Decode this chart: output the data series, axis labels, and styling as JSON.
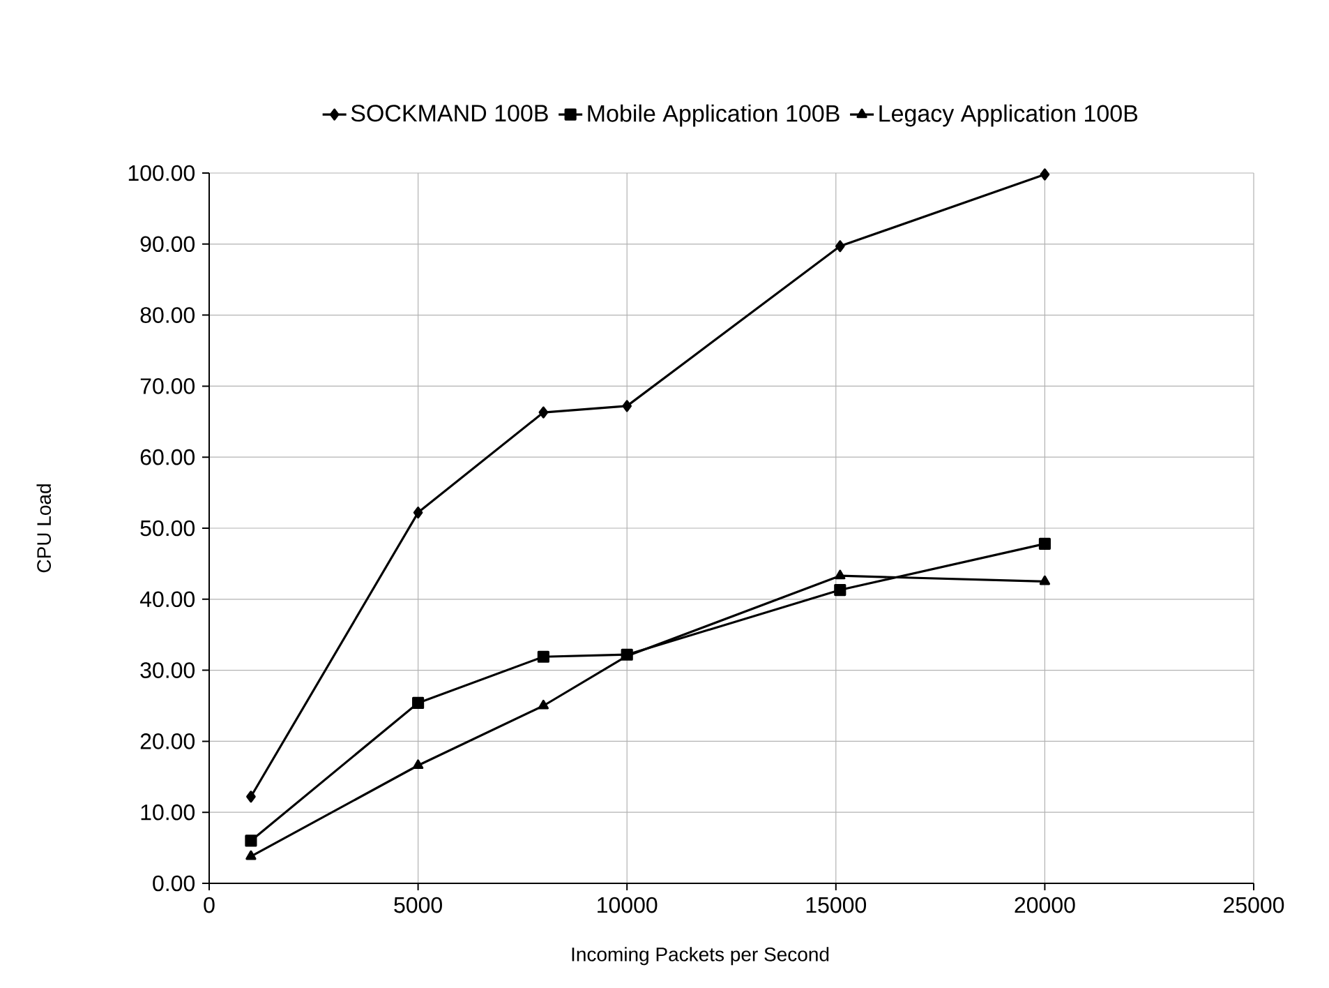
{
  "chart_data": {
    "type": "line",
    "xlabel": "Incoming Packets per Second",
    "ylabel": "CPU Load",
    "x": [
      1000,
      5000,
      8000,
      10000,
      15100,
      20000
    ],
    "series": [
      {
        "name": "SOCKMAND 100B",
        "color": "#000000",
        "marker": "diamond",
        "values": [
          12.2,
          52.2,
          66.3,
          67.2,
          89.7,
          99.8
        ]
      },
      {
        "name": "Mobile Application 100B",
        "color": "#000000",
        "marker": "square",
        "values": [
          6.0,
          25.4,
          31.9,
          32.2,
          41.3,
          47.8
        ]
      },
      {
        "name": "Legacy Application 100B",
        "color": "#000000",
        "marker": "triangle",
        "values": [
          3.8,
          16.6,
          25.0,
          32.0,
          43.3,
          42.5
        ]
      }
    ],
    "xlim": [
      0,
      25000
    ],
    "xticks": [
      0,
      5000,
      10000,
      15000,
      20000,
      25000
    ],
    "ylim": [
      0,
      100
    ],
    "yticks": [
      {
        "value": 0,
        "label": "0.00"
      },
      {
        "value": 10,
        "label": "10.00"
      },
      {
        "value": 20,
        "label": "20.00"
      },
      {
        "value": 30,
        "label": "30.00"
      },
      {
        "value": 40,
        "label": "40.00"
      },
      {
        "value": 50,
        "label": "50.00"
      },
      {
        "value": 60,
        "label": "60.00"
      },
      {
        "value": 70,
        "label": "70.00"
      },
      {
        "value": 80,
        "label": "80.00"
      },
      {
        "value": 90,
        "label": "90.00"
      },
      {
        "value": 100,
        "label": "100.00"
      }
    ],
    "grid": true,
    "legend": "top",
    "line_style": "solid"
  }
}
